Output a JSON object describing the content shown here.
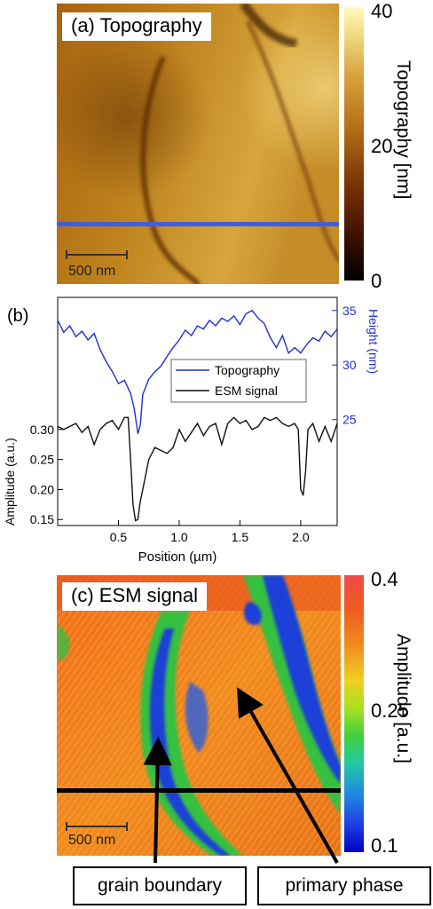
{
  "panel_a": {
    "label": "(a) Topography",
    "scalebar": "500 nm",
    "colorbar": {
      "ticks": [
        "40",
        "20",
        "0"
      ],
      "title": "Topography [nm]"
    }
  },
  "panel_c": {
    "label": "(c) ESM signal",
    "scalebar": "500 nm",
    "colorbar": {
      "ticks": [
        "0.4",
        "0.25",
        "0.1"
      ],
      "title": "Amplitude [a.u.]"
    },
    "annotations": [
      "grain boundary",
      "primary phase"
    ]
  },
  "colors": {
    "topography_line": "#1f2fd6",
    "esm_line": "#111111",
    "map_line_a": "#3f5fe0",
    "map_line_c": "#000000"
  },
  "chart_data": [
    {
      "type": "heatmap",
      "title": "(a) Topography",
      "colorbar_label": "Topography [nm]",
      "colorbar_range": [
        0,
        40
      ],
      "colorbar_ticks": [
        0,
        20,
        40
      ],
      "colormap": "afmhot",
      "scalebar": "500 nm"
    },
    {
      "type": "line",
      "panel_label": "(b)",
      "xlabel": "Position (µm)",
      "xlim": [
        0,
        2.3
      ],
      "xticks": [
        0.5,
        1.0,
        1.5,
        2.0
      ],
      "x_tick_labels": [
        "0.5",
        "1.0",
        "1.5",
        "2.0"
      ],
      "y_left": {
        "label": "Amplitude (a.u.)",
        "ticks": [
          0.15,
          0.2,
          0.25,
          0.3
        ],
        "tick_labels": [
          "0.15",
          "0.20",
          "0.25",
          "0.30"
        ],
        "lim": [
          0.14,
          0.52
        ]
      },
      "y_right": {
        "label": "Height (nm)",
        "ticks": [
          25,
          30,
          35
        ],
        "tick_labels": [
          "25",
          "30",
          "35"
        ],
        "lim": [
          15.3,
          36.2
        ]
      },
      "legend": {
        "position": "center-right",
        "entries": [
          "Topography",
          "ESM signal"
        ]
      },
      "series": [
        {
          "name": "Topography",
          "axis": "right",
          "x": [
            0.0,
            0.05,
            0.1,
            0.15,
            0.2,
            0.25,
            0.3,
            0.35,
            0.4,
            0.45,
            0.5,
            0.55,
            0.6,
            0.63,
            0.66,
            0.68,
            0.7,
            0.75,
            0.8,
            0.85,
            0.9,
            0.95,
            1.0,
            1.05,
            1.1,
            1.15,
            1.2,
            1.25,
            1.3,
            1.35,
            1.4,
            1.45,
            1.5,
            1.55,
            1.6,
            1.65,
            1.7,
            1.75,
            1.8,
            1.85,
            1.9,
            1.95,
            2.0,
            2.05,
            2.1,
            2.15,
            2.2,
            2.25,
            2.3
          ],
          "values": [
            34.1,
            33.0,
            33.6,
            32.6,
            33.1,
            32.3,
            32.9,
            31.4,
            30.3,
            29.4,
            28.3,
            28.6,
            27.4,
            26.0,
            23.7,
            24.5,
            27.3,
            28.7,
            29.4,
            29.9,
            30.8,
            31.6,
            32.3,
            33.2,
            32.7,
            33.6,
            33.3,
            34.1,
            33.6,
            34.3,
            34.0,
            34.5,
            33.7,
            34.7,
            35.0,
            34.3,
            33.8,
            32.5,
            31.6,
            32.7,
            31.1,
            31.6,
            31.1,
            31.9,
            32.5,
            32.2,
            33.1,
            32.6,
            33.3
          ]
        },
        {
          "name": "ESM signal",
          "axis": "left",
          "x": [
            0.0,
            0.05,
            0.1,
            0.15,
            0.2,
            0.25,
            0.3,
            0.35,
            0.4,
            0.45,
            0.5,
            0.55,
            0.58,
            0.6,
            0.62,
            0.64,
            0.66,
            0.68,
            0.7,
            0.75,
            0.8,
            0.85,
            0.9,
            0.95,
            1.0,
            1.05,
            1.1,
            1.15,
            1.2,
            1.25,
            1.3,
            1.35,
            1.4,
            1.45,
            1.5,
            1.55,
            1.6,
            1.65,
            1.7,
            1.75,
            1.8,
            1.85,
            1.9,
            1.95,
            1.98,
            2.0,
            2.02,
            2.04,
            2.06,
            2.1,
            2.15,
            2.2,
            2.25,
            2.3
          ],
          "values": [
            0.305,
            0.3,
            0.305,
            0.31,
            0.295,
            0.305,
            0.275,
            0.3,
            0.31,
            0.315,
            0.3,
            0.32,
            0.32,
            0.25,
            0.175,
            0.148,
            0.15,
            0.18,
            0.2,
            0.25,
            0.27,
            0.265,
            0.26,
            0.27,
            0.3,
            0.28,
            0.295,
            0.31,
            0.29,
            0.305,
            0.31,
            0.275,
            0.31,
            0.32,
            0.31,
            0.315,
            0.3,
            0.305,
            0.32,
            0.315,
            0.32,
            0.31,
            0.305,
            0.31,
            0.3,
            0.2,
            0.19,
            0.23,
            0.3,
            0.31,
            0.28,
            0.305,
            0.28,
            0.31
          ]
        }
      ]
    },
    {
      "type": "heatmap",
      "title": "(c) ESM signal",
      "colorbar_label": "Amplitude [a.u.]",
      "colorbar_range": [
        0.1,
        0.4
      ],
      "colorbar_ticks": [
        0.1,
        0.25,
        0.4
      ],
      "colormap": "jet",
      "scalebar": "500 nm",
      "annotations": [
        "grain boundary",
        "primary phase"
      ]
    }
  ]
}
